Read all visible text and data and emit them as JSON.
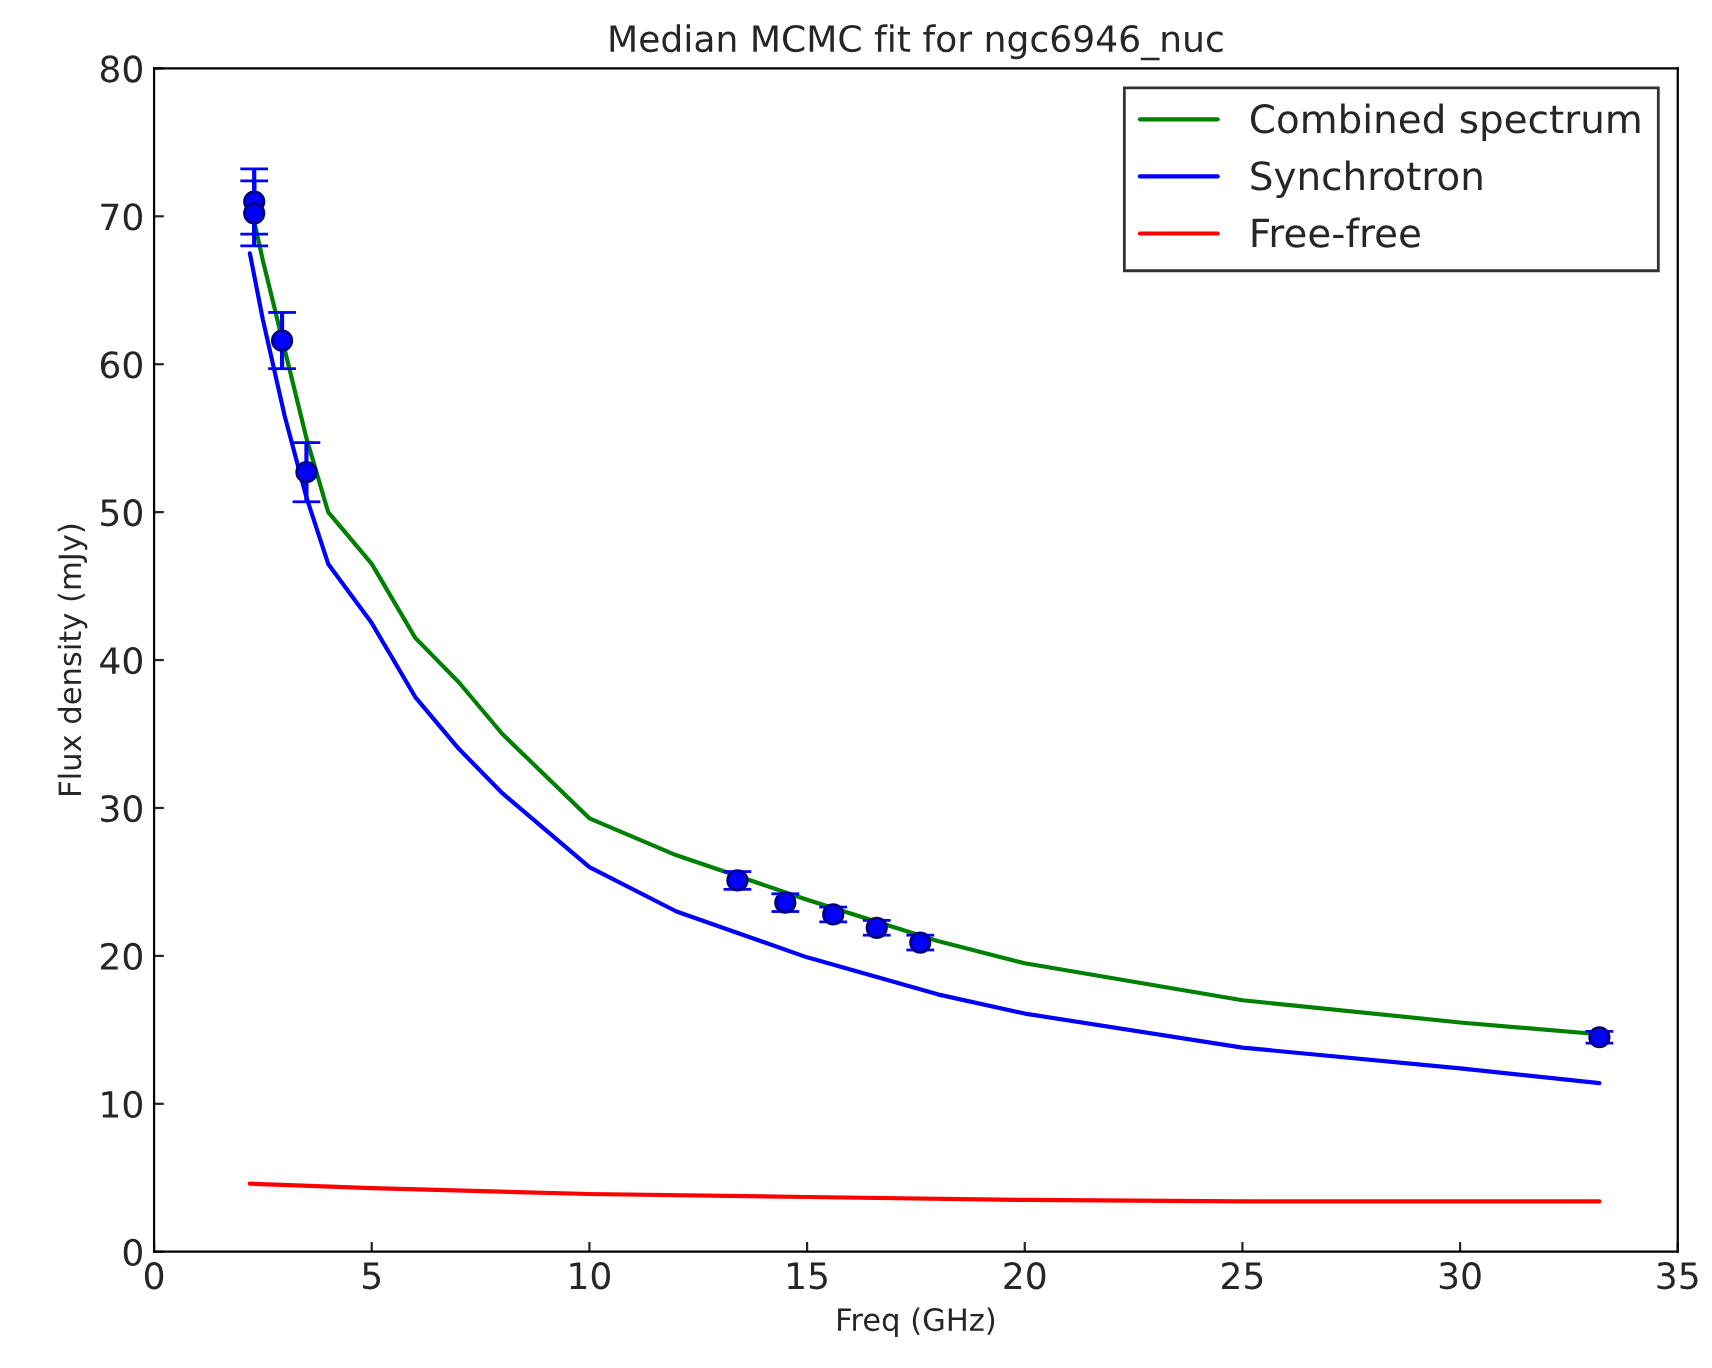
{
  "chart_data": {
    "type": "line",
    "title": "Median MCMC fit for ngc6946_nuc",
    "xlabel": "Freq (GHz)",
    "ylabel": "Flux density (mJy)",
    "xlim": [
      0,
      35
    ],
    "ylim": [
      0,
      80
    ],
    "xticks": [
      0,
      5,
      10,
      15,
      20,
      25,
      30,
      35
    ],
    "yticks": [
      0,
      10,
      20,
      30,
      40,
      50,
      60,
      70,
      80
    ],
    "grid": false,
    "legend": "top right",
    "series": [
      {
        "name": "Combined spectrum",
        "color": "#008000",
        "x": [
          2.2,
          2.5,
          3,
          3.5,
          4,
          5,
          6,
          7,
          8,
          10,
          12,
          15,
          18,
          20,
          25,
          30,
          33.2
        ],
        "values": [
          71,
          67,
          61,
          55,
          50,
          46.5,
          41.5,
          38.5,
          35,
          29.3,
          26.8,
          23.8,
          21,
          19.5,
          17,
          15.5,
          14.7
        ]
      },
      {
        "name": "Synchrotron",
        "color": "#0000ff",
        "x": [
          2.2,
          2.5,
          3,
          3.5,
          4,
          5,
          6,
          7,
          8,
          10,
          12,
          15,
          18,
          20,
          25,
          30,
          33.2
        ],
        "values": [
          67.5,
          63,
          56.5,
          51,
          46.5,
          42.5,
          37.5,
          34,
          31,
          26,
          23,
          19.9,
          17.4,
          16.1,
          13.8,
          12.4,
          11.4
        ]
      },
      {
        "name": "Free-free",
        "color": "#ff0000",
        "x": [
          2.2,
          5,
          10,
          15,
          20,
          25,
          30,
          33.2
        ],
        "values": [
          4.6,
          4.3,
          3.9,
          3.7,
          3.5,
          3.4,
          3.4,
          3.4
        ]
      },
      {
        "type": "scatter",
        "color": "#0000ff",
        "marker": "circle",
        "x": [
          2.3,
          2.3,
          2.94,
          3.5,
          13.4,
          14.5,
          15.6,
          16.6,
          17.6,
          33.2
        ],
        "values": [
          71.0,
          70.2,
          61.6,
          52.7,
          25.1,
          23.6,
          22.8,
          21.9,
          20.9,
          14.5
        ],
        "errors": [
          2.2,
          2.2,
          1.9,
          2,
          0.6,
          0.6,
          0.5,
          0.5,
          0.5,
          0.4
        ]
      }
    ]
  }
}
